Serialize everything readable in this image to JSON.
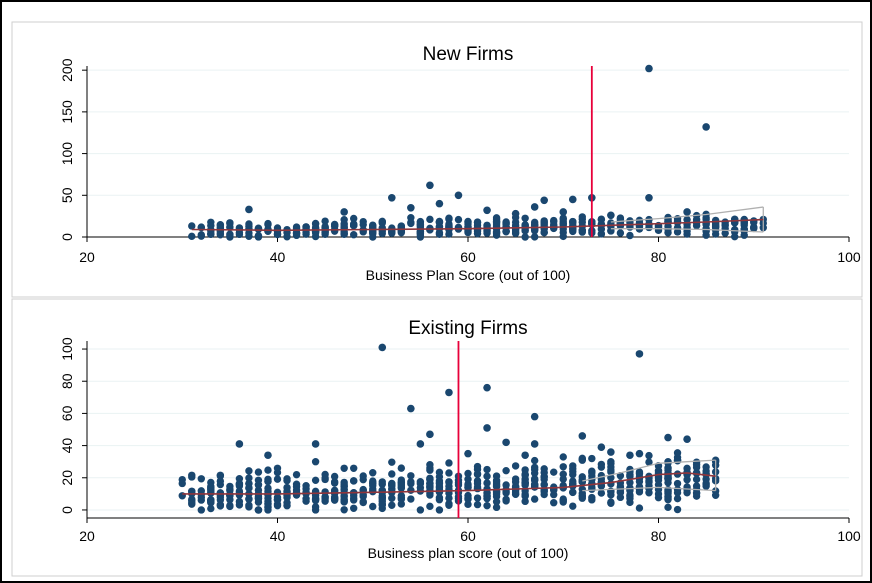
{
  "colors": {
    "marker": "#1a476f",
    "fit_line": "#90353b",
    "ci_band": "#b0b0b0",
    "cutoff": "#e8003a",
    "gridline": "#eaf2f3",
    "panel_border": "#000000"
  },
  "chart_data": [
    {
      "type": "scatter",
      "title": "New Firms",
      "xlabel": "Business Plan Score (out of 100)",
      "ylabel": "",
      "xlim": [
        20,
        100
      ],
      "ylim": [
        0,
        205
      ],
      "xticks": [
        "20",
        "40",
        "60",
        "80",
        "100"
      ],
      "yticks": [
        "0",
        "50",
        "100",
        "150",
        "200"
      ],
      "xtick_values": [
        20,
        40,
        60,
        80,
        100
      ],
      "ytick_values": [
        0,
        50,
        100,
        150,
        200
      ],
      "grid": true,
      "cutoff_x": 73,
      "outliers": [
        [
          79,
          202
        ],
        [
          85,
          132
        ],
        [
          56,
          62
        ],
        [
          59,
          50
        ],
        [
          52,
          47
        ],
        [
          73,
          47
        ],
        [
          79,
          47
        ],
        [
          71,
          45
        ],
        [
          68,
          44
        ],
        [
          37,
          33
        ],
        [
          47,
          30
        ],
        [
          83,
          30
        ],
        [
          54,
          35
        ],
        [
          62,
          32
        ],
        [
          65,
          28
        ],
        [
          57,
          40
        ],
        [
          67,
          36
        ],
        [
          70,
          30
        ],
        [
          75,
          26
        ]
      ],
      "cloud": {
        "x_min": 31,
        "x_max": 91,
        "y_base": 8,
        "y_slope": 0.12,
        "y_spread": 10,
        "n": 460
      },
      "fit": {
        "x": [
          31,
          40,
          50,
          60,
          70,
          75,
          80,
          85,
          91
        ],
        "y": [
          9,
          8,
          9,
          10,
          12,
          14,
          16,
          18,
          21
        ]
      },
      "ci_upper": {
        "x": [
          75,
          80,
          85,
          91
        ],
        "y": [
          18,
          22,
          27,
          36
        ]
      },
      "ci_lower": {
        "x": [
          75,
          80,
          85,
          91
        ],
        "y": [
          10,
          10,
          9,
          6
        ]
      }
    },
    {
      "type": "scatter",
      "title": "Existing Firms",
      "xlabel": "Business plan score (out of 100)",
      "ylabel": "",
      "xlim": [
        20,
        100
      ],
      "ylim": [
        -5,
        105
      ],
      "xticks": [
        "20",
        "40",
        "60",
        "80",
        "100"
      ],
      "yticks": [
        "0",
        "20",
        "40",
        "60",
        "80",
        "100"
      ],
      "xtick_values": [
        20,
        40,
        60,
        80,
        100
      ],
      "ytick_values": [
        0,
        20,
        40,
        60,
        80,
        100
      ],
      "grid": true,
      "cutoff_x": 59,
      "outliers": [
        [
          51,
          101
        ],
        [
          78,
          97
        ],
        [
          62,
          76
        ],
        [
          58,
          73
        ],
        [
          67,
          58
        ],
        [
          54,
          63
        ],
        [
          62,
          51
        ],
        [
          56,
          47
        ],
        [
          55,
          41
        ],
        [
          36,
          41
        ],
        [
          44,
          41
        ],
        [
          72,
          46
        ],
        [
          81,
          45
        ],
        [
          83,
          44
        ],
        [
          64,
          42
        ],
        [
          67,
          41
        ],
        [
          74,
          39
        ],
        [
          75,
          36
        ],
        [
          77,
          34
        ],
        [
          78,
          35
        ],
        [
          39,
          34
        ],
        [
          60,
          35
        ],
        [
          66,
          34
        ]
      ],
      "cloud": {
        "x_min": 30,
        "x_max": 86,
        "y_base": 10,
        "y_slope": 0.15,
        "y_spread": 14,
        "n": 620
      },
      "fit": {
        "x": [
          30,
          40,
          50,
          60,
          65,
          70,
          75,
          80,
          83,
          86
        ],
        "y": [
          10,
          10,
          11,
          12,
          13,
          14,
          17,
          22,
          23,
          21
        ]
      },
      "ci_upper": {
        "x": [
          72,
          76,
          80,
          83,
          86
        ],
        "y": [
          18,
          23,
          29,
          30,
          31
        ]
      },
      "ci_lower": {
        "x": [
          72,
          76,
          80,
          83,
          86
        ],
        "y": [
          12,
          13,
          14,
          13,
          12
        ]
      }
    }
  ]
}
